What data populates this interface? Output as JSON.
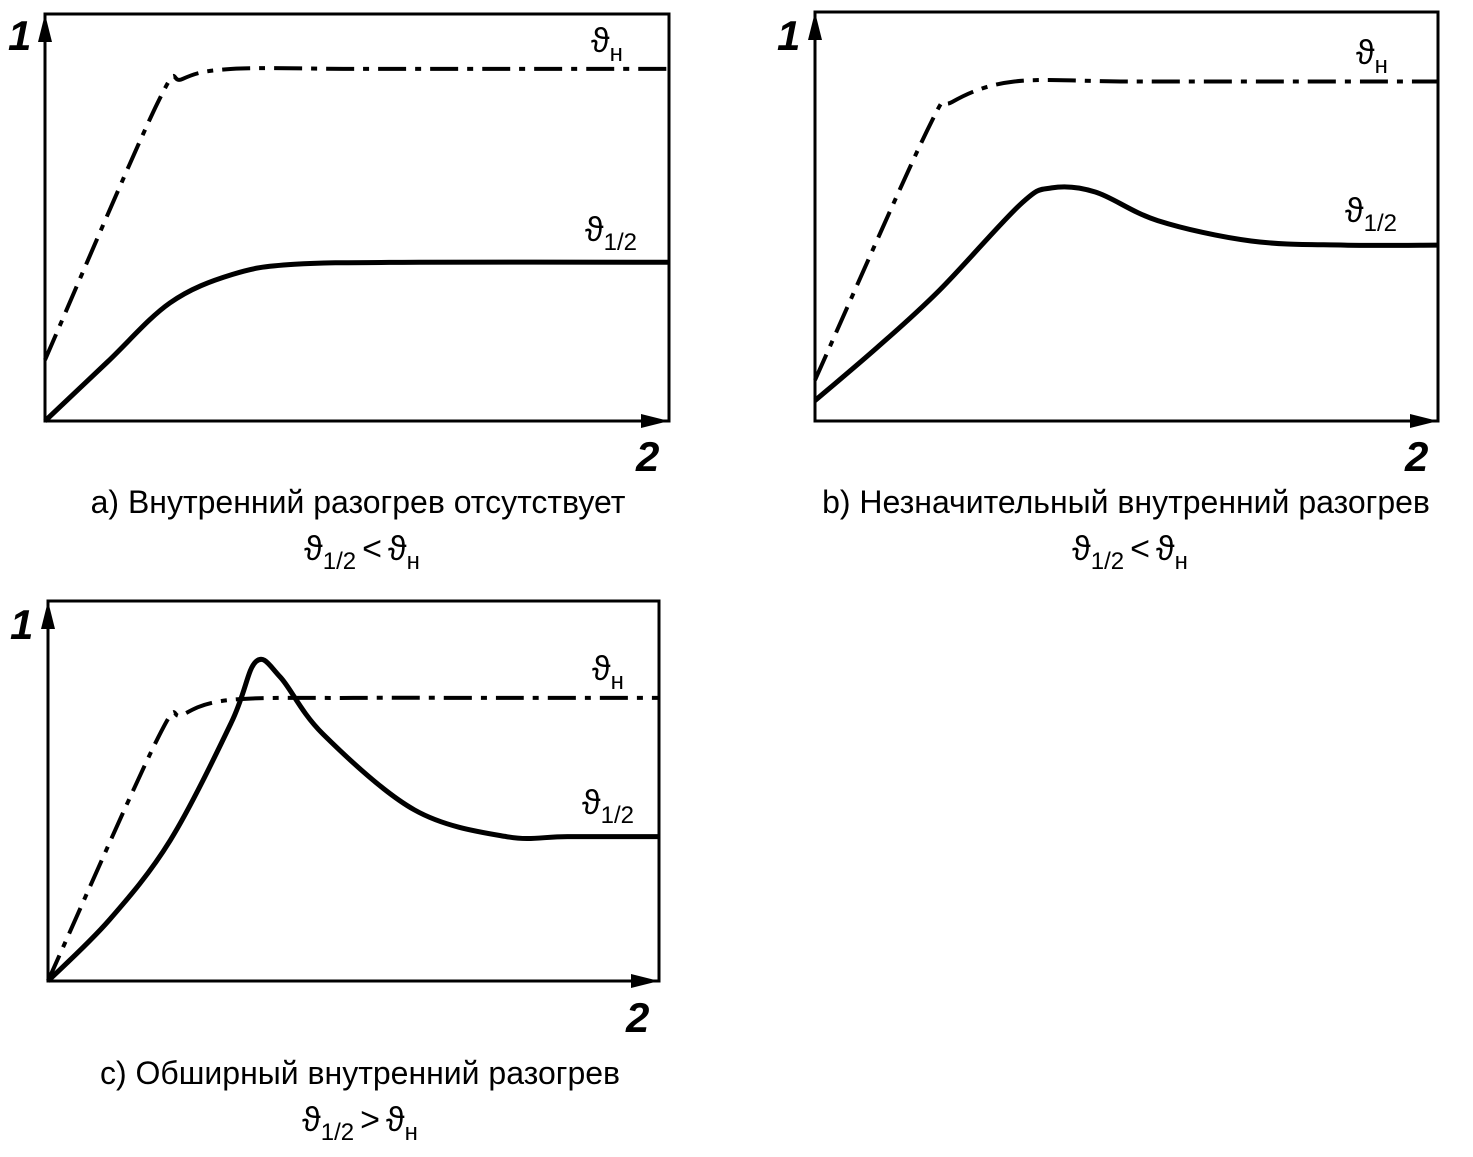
{
  "chart_data": [
    {
      "type": "line",
      "y_axis_label": "1",
      "x_axis_label": "2",
      "caption": "a) Внутренний разогрев отсутствует",
      "relation": {
        "left_main": "ϑ",
        "left_sub": "1/2",
        "op": "<",
        "right_main": "ϑ",
        "right_sub": "н"
      },
      "series": [
        {
          "label_main": "ϑ",
          "label_sub": "н",
          "style": "dash-dot",
          "points": [
            [
              0,
              0.15
            ],
            [
              0.18,
              0.78
            ],
            [
              0.22,
              0.84
            ],
            [
              0.3,
              0.865
            ],
            [
              0.5,
              0.865
            ],
            [
              0.75,
              0.865
            ],
            [
              1,
              0.865
            ]
          ]
        },
        {
          "label_main": "ϑ",
          "label_sub": "1/2",
          "style": "solid",
          "points": [
            [
              0,
              0
            ],
            [
              0.1,
              0.145
            ],
            [
              0.2,
              0.29
            ],
            [
              0.3,
              0.36
            ],
            [
              0.4,
              0.385
            ],
            [
              0.6,
              0.39
            ],
            [
              1,
              0.39
            ]
          ]
        }
      ]
    },
    {
      "type": "line",
      "y_axis_label": "1",
      "x_axis_label": "2",
      "caption": "b) Незначительный внутренний разогрев",
      "relation": {
        "left_main": "ϑ",
        "left_sub": "1/2",
        "op": "<",
        "right_main": "ϑ",
        "right_sub": "н"
      },
      "series": [
        {
          "label_main": "ϑ",
          "label_sub": "н",
          "style": "dash-dot",
          "points": [
            [
              0,
              0.1
            ],
            [
              0.18,
              0.71
            ],
            [
              0.22,
              0.78
            ],
            [
              0.32,
              0.83
            ],
            [
              0.5,
              0.83
            ],
            [
              0.75,
              0.83
            ],
            [
              1,
              0.83
            ]
          ]
        },
        {
          "label_main": "ϑ",
          "label_sub": "1/2",
          "style": "solid",
          "points": [
            [
              0,
              0.05
            ],
            [
              0.1,
              0.18
            ],
            [
              0.2,
              0.32
            ],
            [
              0.33,
              0.53
            ],
            [
              0.38,
              0.57
            ],
            [
              0.45,
              0.56
            ],
            [
              0.55,
              0.49
            ],
            [
              0.7,
              0.44
            ],
            [
              0.85,
              0.43
            ],
            [
              1,
              0.43
            ]
          ]
        }
      ]
    },
    {
      "type": "line",
      "y_axis_label": "1",
      "x_axis_label": "2",
      "caption": "c) Обширный внутренний разогрев",
      "relation": {
        "left_main": "ϑ",
        "left_sub": "1/2",
        "op": ">",
        "right_main": "ϑ",
        "right_sub": "н"
      },
      "series": [
        {
          "label_main": "ϑ",
          "label_sub": "н",
          "style": "dash-dot",
          "points": [
            [
              0,
              0
            ],
            [
              0.18,
              0.64
            ],
            [
              0.22,
              0.7
            ],
            [
              0.3,
              0.74
            ],
            [
              0.5,
              0.745
            ],
            [
              0.75,
              0.745
            ],
            [
              1,
              0.745
            ]
          ]
        },
        {
          "label_main": "ϑ",
          "label_sub": "1/2",
          "style": "solid",
          "points": [
            [
              0,
              0
            ],
            [
              0.1,
              0.16
            ],
            [
              0.2,
              0.37
            ],
            [
              0.3,
              0.68
            ],
            [
              0.34,
              0.84
            ],
            [
              0.38,
              0.8
            ],
            [
              0.45,
              0.65
            ],
            [
              0.6,
              0.45
            ],
            [
              0.75,
              0.38
            ],
            [
              0.85,
              0.38
            ],
            [
              1,
              0.38
            ]
          ]
        }
      ]
    }
  ]
}
